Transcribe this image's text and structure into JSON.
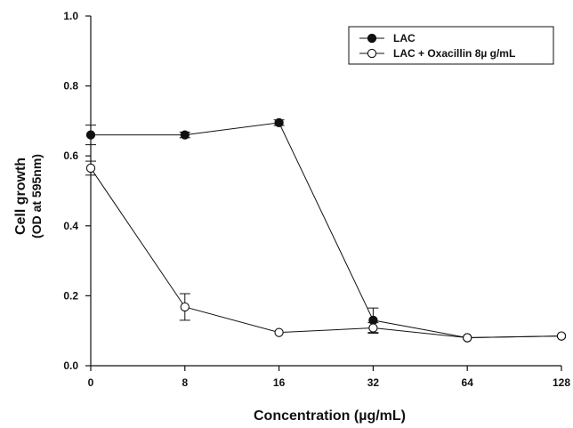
{
  "chart_data": {
    "type": "line",
    "title": "",
    "xlabel": "Concentration (µg/mL)",
    "ylabel": "Cell growth",
    "ylabel2": "(OD at 595nm)",
    "categories": [
      "0",
      "8",
      "16",
      "32",
      "64",
      "128"
    ],
    "ylim": [
      0.0,
      1.0
    ],
    "yticks": [
      "0.0",
      "0.2",
      "0.4",
      "0.6",
      "0.8",
      "1.0"
    ],
    "grid": false,
    "legend_position": "top-right",
    "series": [
      {
        "name": "LAC",
        "marker": "filled-circle",
        "color": "#111111",
        "values": [
          0.66,
          0.66,
          0.695,
          0.13,
          0.08,
          0.085
        ],
        "errors": [
          0.028,
          0.008,
          0.008,
          0.035,
          0.0,
          0.0
        ]
      },
      {
        "name": "LAC + Oxacillin 8µ g/mL",
        "marker": "open-circle",
        "color": "#111111",
        "values": [
          0.565,
          0.168,
          0.095,
          0.108,
          0.08,
          0.085
        ],
        "errors": [
          0.02,
          0.038,
          0.0,
          0.015,
          0.0,
          0.0
        ]
      }
    ]
  }
}
